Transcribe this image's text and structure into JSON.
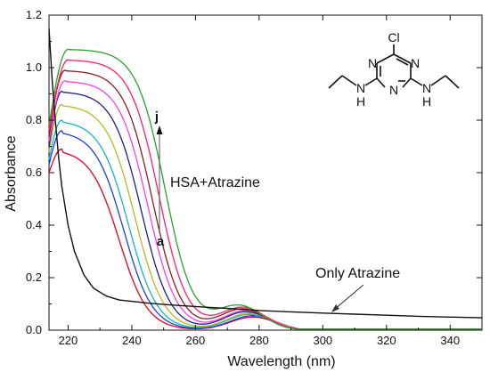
{
  "chart_data": {
    "type": "line",
    "xlabel": "Wavelength (nm)",
    "ylabel": "Absorbance",
    "xlim": [
      214,
      350
    ],
    "ylim": [
      0,
      1.2
    ],
    "xticks": [
      220,
      240,
      260,
      280,
      300,
      320,
      340
    ],
    "yticks": [
      0.0,
      0.2,
      0.4,
      0.6,
      0.8,
      1.0,
      1.2
    ],
    "ytick_labels": [
      "0.0",
      "0.2",
      "0.4",
      "0.6",
      "0.8",
      "1.0",
      "1.2"
    ],
    "grid": false,
    "series_colors": [
      "#e8001c",
      "#1f3fd6",
      "#14b4c8",
      "#b8b820",
      "#1e1e8c",
      "#ff3fe0",
      "#8b1d1d",
      "#ff2060",
      "#2aa02a"
    ],
    "series": [
      {
        "peak_x": 218,
        "peak_y": 0.69,
        "start_y": 0.6,
        "half_x": 236.0,
        "hump_y": 0.05,
        "hump_x": 278,
        "end_x": 290
      },
      {
        "peak_x": 218,
        "peak_y": 0.76,
        "start_y": 0.63,
        "half_x": 237.5,
        "hump_y": 0.055,
        "hump_x": 278,
        "end_x": 291
      },
      {
        "peak_x": 218,
        "peak_y": 0.8,
        "start_y": 0.65,
        "half_x": 239.0,
        "hump_y": 0.06,
        "hump_x": 277,
        "end_x": 291
      },
      {
        "peak_x": 218,
        "peak_y": 0.86,
        "start_y": 0.68,
        "half_x": 241.0,
        "hump_y": 0.065,
        "hump_x": 277,
        "end_x": 292
      },
      {
        "peak_x": 218,
        "peak_y": 0.91,
        "start_y": 0.7,
        "half_x": 243.0,
        "hump_y": 0.07,
        "hump_x": 276,
        "end_x": 293
      },
      {
        "peak_x": 219,
        "peak_y": 0.95,
        "start_y": 0.72,
        "half_x": 245.0,
        "hump_y": 0.075,
        "hump_x": 276,
        "end_x": 294
      },
      {
        "peak_x": 219,
        "peak_y": 0.99,
        "start_y": 0.74,
        "half_x": 246.5,
        "hump_y": 0.08,
        "hump_x": 275,
        "end_x": 295
      },
      {
        "peak_x": 220,
        "peak_y": 1.03,
        "start_y": 0.76,
        "half_x": 248.5,
        "hump_y": 0.085,
        "hump_x": 275,
        "end_x": 296
      },
      {
        "peak_x": 220,
        "peak_y": 1.07,
        "start_y": 0.78,
        "half_x": 250.5,
        "hump_y": 0.09,
        "hump_x": 274,
        "end_x": 297
      }
    ],
    "reference_series": {
      "color": "#111111",
      "x": [
        214,
        215,
        216,
        217,
        218,
        220,
        222,
        225,
        228,
        232,
        236,
        240,
        245,
        250,
        255,
        260,
        265,
        270,
        275,
        280,
        290,
        300,
        310,
        320,
        330,
        340,
        350
      ],
      "y": [
        1.15,
        0.95,
        0.8,
        0.66,
        0.55,
        0.4,
        0.3,
        0.21,
        0.16,
        0.13,
        0.115,
        0.11,
        0.103,
        0.098,
        0.094,
        0.09,
        0.086,
        0.083,
        0.079,
        0.075,
        0.07,
        0.065,
        0.061,
        0.057,
        0.053,
        0.05,
        0.047
      ]
    },
    "annotations": {
      "label_j": "j",
      "label_a": "a",
      "hsa_label": "HSA+Atrazine",
      "only_label": "Only Atrazine"
    },
    "molecule": {
      "cl": "Cl",
      "n_ring": "N",
      "nh": "N",
      "h": "H"
    }
  }
}
